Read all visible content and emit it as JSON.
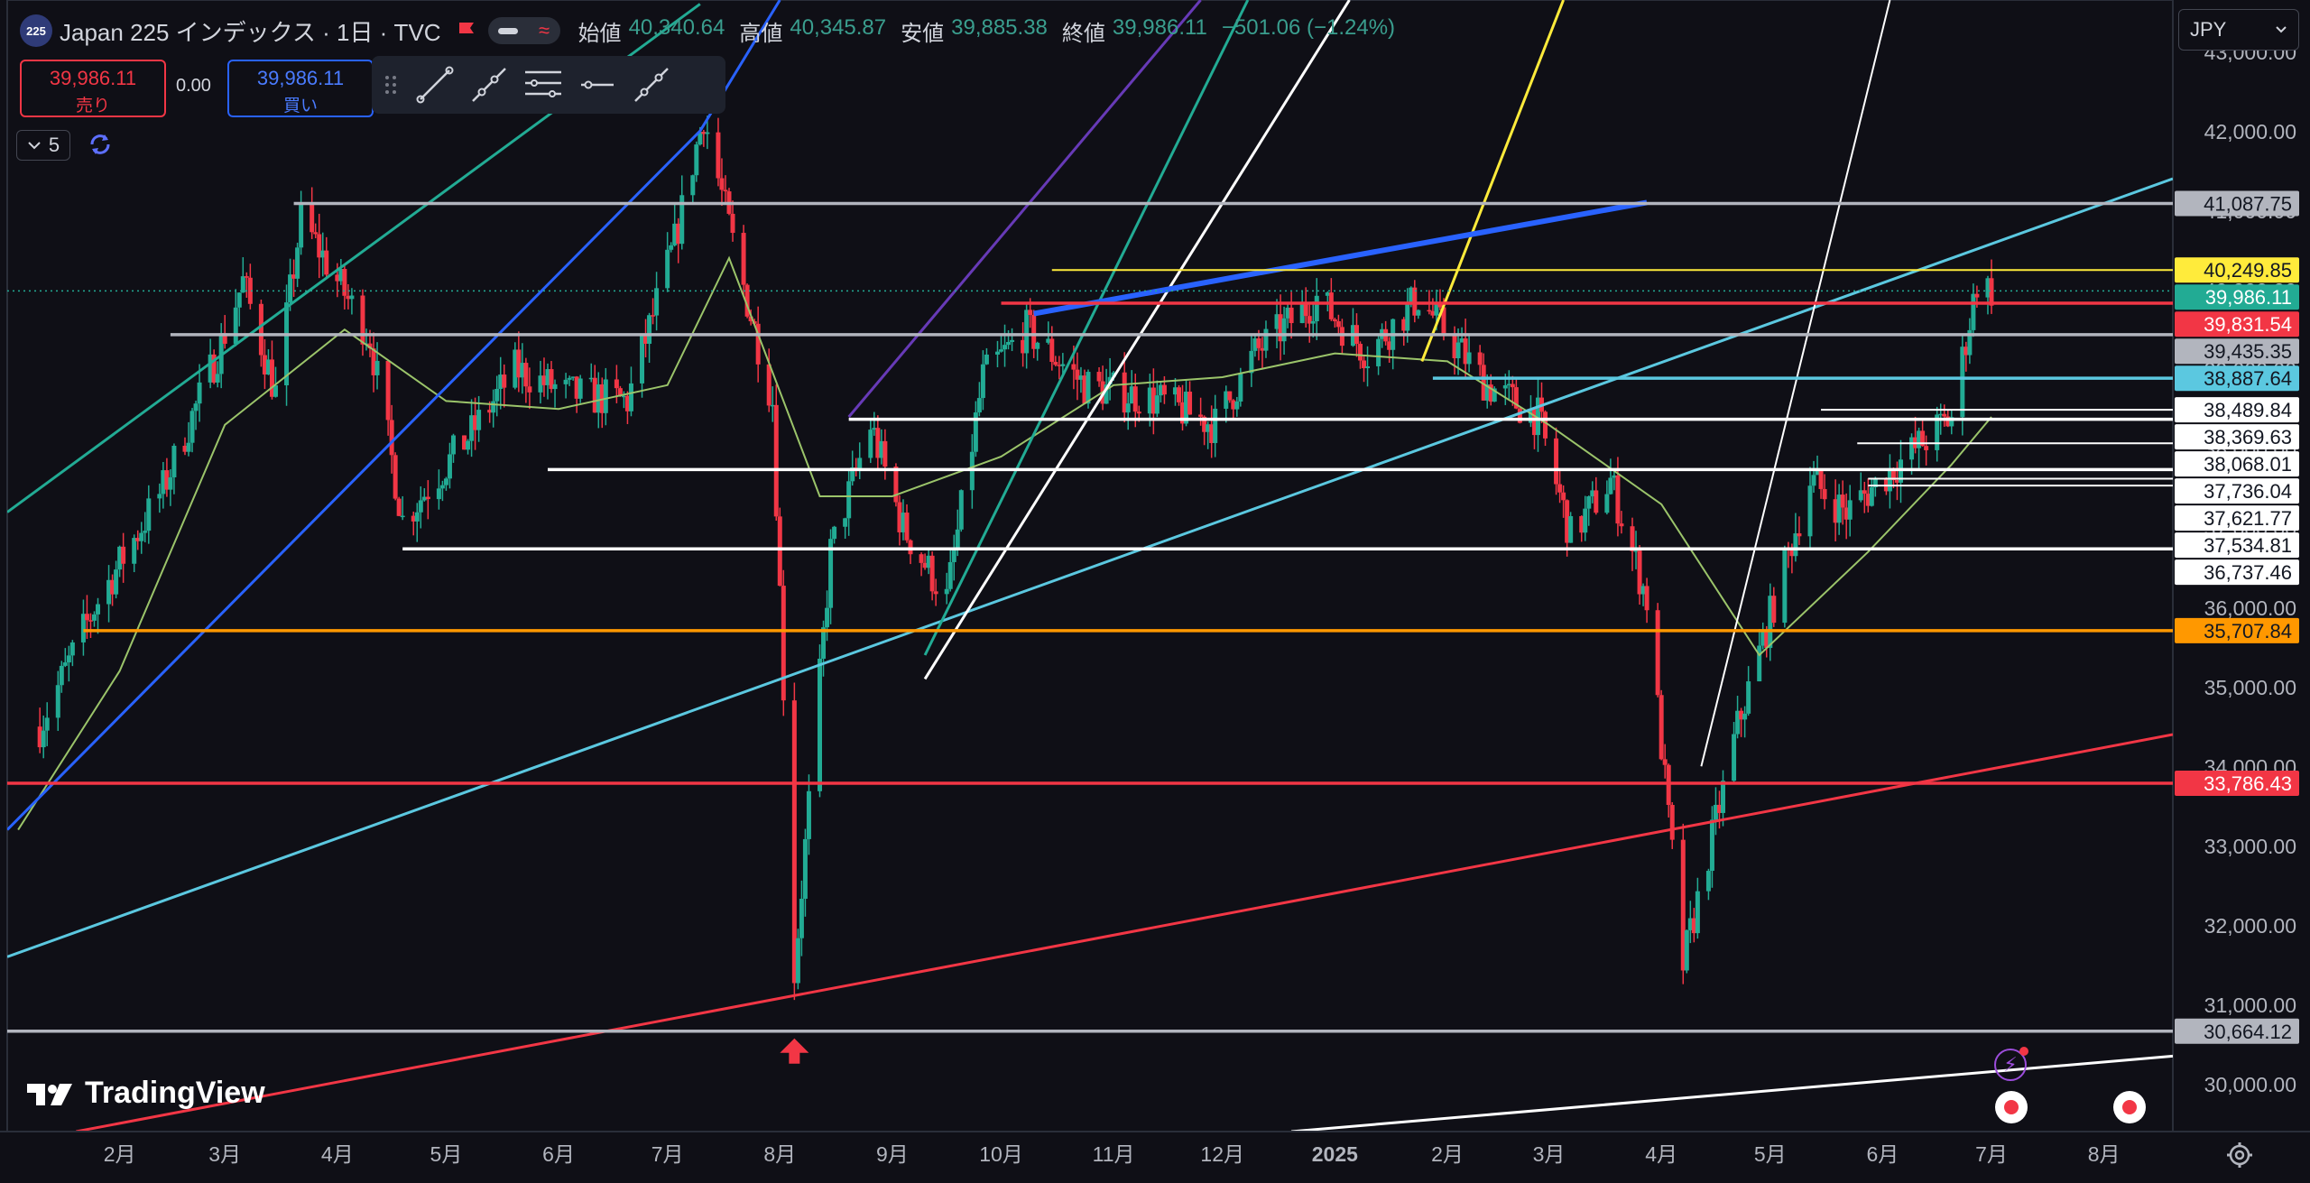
{
  "header": {
    "symbol_badge": "225",
    "title": "Japan 225 インデックス · 1日 · TVC",
    "ohlc": [
      {
        "label": "始値",
        "value": "40,340.64"
      },
      {
        "label": "高値",
        "value": "40,345.87"
      },
      {
        "label": "安値",
        "value": "39,885.38"
      },
      {
        "label": "終値",
        "value": "39,986.11"
      },
      {
        "label": "",
        "value": "−501.06 (−1.24%)"
      }
    ]
  },
  "trade": {
    "sell_price": "39,986.11",
    "sell_label": "売り",
    "spread": "0.00",
    "buy_price": "39,986.11",
    "buy_label": "買い"
  },
  "toolbar": {
    "tools": [
      "trend-line-icon",
      "ray-icon",
      "pitchfork-icon",
      "horizontal-ray-icon",
      "extended-line-icon"
    ]
  },
  "indicators": {
    "count": "5"
  },
  "currency": "JPY",
  "branding": "TradingView",
  "colors": {
    "up": "#22ab94",
    "down": "#f23645",
    "ma": "#9bc46a",
    "background": "#0f0f16",
    "grey": "#b2b5be",
    "white": "#ffffff",
    "yellow": "#ffeb3b",
    "red": "#f23645",
    "cyan": "#5bc8e0",
    "teal": "#22ab94",
    "orange": "#ff9800",
    "blue": "#2962ff",
    "purple": "#673ab7"
  },
  "chart_data": {
    "type": "candlestick",
    "title": "Japan 225 インデックス · 1日 · TVC",
    "x_ticks": [
      "2月",
      "3月",
      "4月",
      "5月",
      "6月",
      "7月",
      "8月",
      "9月",
      "10月",
      "11月",
      "12月",
      "2025",
      "2月",
      "3月",
      "4月",
      "5月",
      "6月",
      "7月",
      "8月"
    ],
    "y_ticks": [
      "30,000.00",
      "31,000.00",
      "32,000.00",
      "33,000.00",
      "34,000.00",
      "35,000.00",
      "36,000.00",
      "37,000.00",
      "38,000.00",
      "39,000.00",
      "40,000.00",
      "41,000.00",
      "42,000.00",
      "43,000.00"
    ],
    "ylim": [
      29400,
      43650
    ],
    "close_path": [
      [
        "2024-01-10",
        34500
      ],
      [
        "2024-01-25",
        36000
      ],
      [
        "2024-02-13",
        37500
      ],
      [
        "2024-02-28",
        39200
      ],
      [
        "2024-03-06",
        40100
      ],
      [
        "2024-03-15",
        38700
      ],
      [
        "2024-03-22",
        40900
      ],
      [
        "2024-04-10",
        39400
      ],
      [
        "2024-04-19",
        37100
      ],
      [
        "2024-05-08",
        38200
      ],
      [
        "2024-05-20",
        39000
      ],
      [
        "2024-06-03",
        38700
      ],
      [
        "2024-06-20",
        38600
      ],
      [
        "2024-07-03",
        40600
      ],
      [
        "2024-07-11",
        42200
      ],
      [
        "2024-07-20",
        40400
      ],
      [
        "2024-07-30",
        38600
      ],
      [
        "2024-08-05",
        31400
      ],
      [
        "2024-08-15",
        36700
      ],
      [
        "2024-08-26",
        38300
      ],
      [
        "2024-09-04",
        37000
      ],
      [
        "2024-09-16",
        36100
      ],
      [
        "2024-09-26",
        38900
      ],
      [
        "2024-10-08",
        39500
      ],
      [
        "2024-10-24",
        38800
      ],
      [
        "2024-11-14",
        38600
      ],
      [
        "2024-11-29",
        38300
      ],
      [
        "2024-12-10",
        39200
      ],
      [
        "2024-12-27",
        39900
      ],
      [
        "2025-01-10",
        39200
      ],
      [
        "2025-01-24",
        39900
      ],
      [
        "2025-02-12",
        38800
      ],
      [
        "2025-02-26",
        38400
      ],
      [
        "2025-03-07",
        36900
      ],
      [
        "2025-03-18",
        37600
      ],
      [
        "2025-03-28",
        36100
      ],
      [
        "2025-04-07",
        31500
      ],
      [
        "2025-04-22",
        34500
      ],
      [
        "2025-05-12",
        37600
      ],
      [
        "2025-05-22",
        37200
      ],
      [
        "2025-06-05",
        37800
      ],
      [
        "2025-06-20",
        38400
      ],
      [
        "2025-06-27",
        40100
      ],
      [
        "2025-07-01",
        39986
      ]
    ],
    "moving_average": [
      [
        "2024-01-04",
        33200
      ],
      [
        "2024-02-01",
        35200
      ],
      [
        "2024-03-01",
        38300
      ],
      [
        "2024-04-03",
        39500
      ],
      [
        "2024-05-01",
        38600
      ],
      [
        "2024-06-01",
        38500
      ],
      [
        "2024-07-01",
        38800
      ],
      [
        "2024-07-18",
        40400
      ],
      [
        "2024-08-12",
        37400
      ],
      [
        "2024-09-01",
        37400
      ],
      [
        "2024-10-01",
        37900
      ],
      [
        "2024-11-01",
        38800
      ],
      [
        "2024-12-01",
        38900
      ],
      [
        "2025-01-01",
        39200
      ],
      [
        "2025-02-01",
        39100
      ],
      [
        "2025-03-01",
        38300
      ],
      [
        "2025-04-01",
        37300
      ],
      [
        "2025-04-28",
        35400
      ],
      [
        "2025-05-28",
        36700
      ],
      [
        "2025-06-20",
        37800
      ],
      [
        "2025-07-01",
        38400
      ]
    ],
    "horizontal_levels": [
      {
        "price": 41087.75,
        "label": "41,087.75",
        "color": "#b2b5be",
        "from": "2024-03-20"
      },
      {
        "price": 40249.85,
        "label": "40,249.85",
        "color": "#ffeb3b",
        "from": "2024-10-15",
        "thin": true
      },
      {
        "price": 39986.11,
        "label": "39,986.11",
        "color": "#22ab94",
        "from": "2024-01-01",
        "dotted": true
      },
      {
        "price": 39831.54,
        "label": "39,831.54",
        "color": "#f23645",
        "from": "2024-10-01"
      },
      {
        "price": 39435.35,
        "label": "39,435.35",
        "color": "#b2b5be",
        "from": "2024-02-15"
      },
      {
        "price": 38887.64,
        "label": "38,887.64",
        "color": "#5bc8e0",
        "from": "2025-01-28"
      },
      {
        "price": 38489.84,
        "label": "38,489.84",
        "color": "#ffffff",
        "from": "2025-05-15",
        "thin": true
      },
      {
        "price": 38369.63,
        "label": "38,369.63",
        "color": "#ffffff",
        "from": "2024-08-20"
      },
      {
        "price": 38068.01,
        "label": "38,068.01",
        "color": "#ffffff",
        "from": "2025-05-25",
        "thin": true
      },
      {
        "price": 37736.04,
        "label": "37,736.04",
        "color": "#ffffff",
        "from": "2024-05-29"
      },
      {
        "price": 37621.77,
        "label": "37,621.77",
        "color": "#ffffff",
        "from": "2025-05-28",
        "thin": true
      },
      {
        "price": 37534.81,
        "label": "37,534.81",
        "color": "#ffffff",
        "from": "2025-05-28",
        "thin": true
      },
      {
        "price": 36737.46,
        "label": "36,737.46",
        "color": "#ffffff",
        "from": "2024-04-19"
      },
      {
        "price": 35707.84,
        "label": "35,707.84",
        "color": "#ff9800",
        "from": "2024-01-22"
      },
      {
        "price": 33786.43,
        "label": "33,786.43",
        "color": "#f23645",
        "from": "2024-01-01"
      },
      {
        "price": 30664.12,
        "label": "30,664.12",
        "color": "#b2b5be",
        "from": "2024-01-01"
      }
    ],
    "trend_lines": [
      {
        "color": "#22ab94",
        "p1": [
          "2024-01-01",
          37200
        ],
        "p2": [
          "2024-07-10",
          43600
        ]
      },
      {
        "color": "#2962ff",
        "p1": [
          "2024-01-01",
          33200
        ],
        "p2": [
          "2024-07-10",
          42000
        ]
      },
      {
        "color": "#2962ff",
        "p1": [
          "2024-07-10",
          42000
        ],
        "p2": [
          "2024-08-01",
          43650
        ]
      },
      {
        "color": "#5bc8e0",
        "p1": [
          "2024-01-01",
          31600
        ],
        "p2": [
          "2025-08-20",
          41400
        ]
      },
      {
        "color": "#f23645",
        "p1": [
          "2024-01-20",
          29400
        ],
        "p2": [
          "2025-08-20",
          34400
        ]
      },
      {
        "color": "#ffffff",
        "p1": [
          "2024-12-20",
          29400
        ],
        "p2": [
          "2025-08-20",
          30350
        ]
      },
      {
        "color": "#ffffff",
        "p1": [
          "2024-09-10",
          35100
        ],
        "p2": [
          "2025-01-05",
          43650
        ]
      },
      {
        "color": "#22ab94",
        "p1": [
          "2024-09-10",
          35400
        ],
        "p2": [
          "2024-12-08",
          43650
        ]
      },
      {
        "color": "#673ab7",
        "p1": [
          "2024-08-20",
          38400
        ],
        "p2": [
          "2024-11-25",
          43650
        ]
      },
      {
        "color": "#ffeb3b",
        "p1": [
          "2025-01-25",
          39100
        ],
        "p2": [
          "2025-03-05",
          43650
        ]
      },
      {
        "color": "#ffffff",
        "p1": [
          "2025-04-12",
          34000
        ],
        "p2": [
          "2025-06-03",
          43650
        ],
        "thin": true
      },
      {
        "color": "#2962ff",
        "p1": [
          "2024-10-10",
          39700
        ],
        "p2": [
          "2025-03-28",
          41100
        ],
        "thick": true
      }
    ]
  }
}
